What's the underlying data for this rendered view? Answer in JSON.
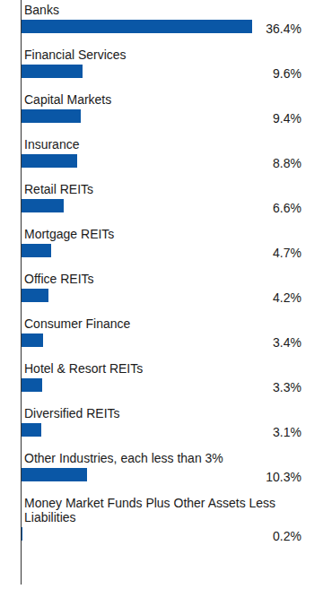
{
  "chart_data": {
    "type": "bar",
    "orientation": "horizontal",
    "categories": [
      "Banks",
      "Financial Services",
      "Capital Markets",
      "Insurance",
      "Retail REITs",
      "Mortgage REITs",
      "Office REITs",
      "Consumer Finance",
      "Hotel & Resort REITs",
      "Diversified REITs",
      "Other Industries, each less than 3%",
      "Money Market Funds Plus Other Assets Less Liabilities"
    ],
    "values": [
      36.4,
      9.6,
      9.4,
      8.8,
      6.6,
      4.7,
      4.2,
      3.4,
      3.3,
      3.1,
      10.3,
      0.2
    ],
    "value_labels": [
      "36.4%",
      "9.6%",
      "9.4%",
      "8.8%",
      "6.6%",
      "4.7%",
      "4.2%",
      "3.4%",
      "3.3%",
      "3.1%",
      "10.3%",
      "0.2%"
    ],
    "color": "#0a57a6",
    "xlim": [
      0,
      36.4
    ],
    "data_labels": true,
    "tick_labels": false,
    "grid": false
  }
}
